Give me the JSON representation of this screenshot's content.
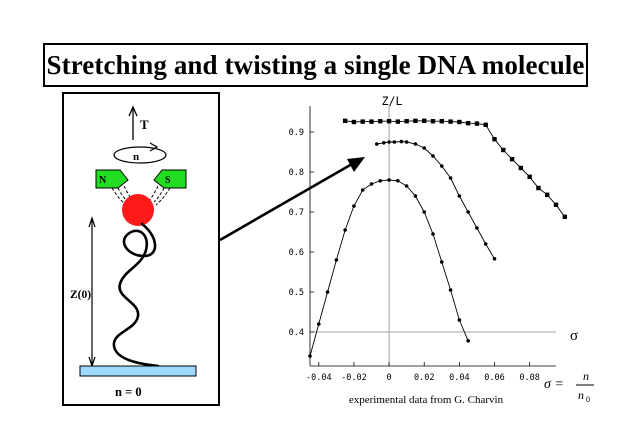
{
  "title": "Stretching and twisting a single DNA molecule",
  "diagram": {
    "tension_label": "T",
    "rotation_label": "n",
    "magnet_left": "N",
    "magnet_right": "S",
    "extension_label": "Z(0)",
    "turns_label": "n = 0",
    "colors": {
      "bead": "#ff1a1a",
      "magnets": "#22dd22",
      "surface": "#9fd8ff"
    }
  },
  "chart_data": {
    "type": "line",
    "title": "Z/L",
    "xlabel": "σ",
    "formula": {
      "lhs": "σ =",
      "numerator": "n",
      "denominator": "n",
      "denominator_sub": "0"
    },
    "caption": "experimental data from G. Charvin",
    "xlim": [
      -0.045,
      0.095
    ],
    "ylim": [
      0.325,
      0.955
    ],
    "xticks": [
      -0.04,
      -0.02,
      0,
      0.02,
      0.04,
      0.06,
      0.08
    ],
    "xtick_labels": [
      "-0.04",
      "-0.02",
      "0",
      "0.02",
      "0.04",
      "0.06",
      "0.08"
    ],
    "yticks": [
      0.4,
      0.5,
      0.6,
      0.7,
      0.8,
      0.9
    ],
    "ytick_labels": [
      "0.4",
      "0.5",
      "0.6",
      "0.7",
      "0.8",
      "0.9"
    ],
    "series": [
      {
        "marker": "square",
        "points": [
          [
            -0.025,
            0.928
          ],
          [
            -0.02,
            0.925
          ],
          [
            -0.015,
            0.926
          ],
          [
            -0.01,
            0.926
          ],
          [
            -0.005,
            0.927
          ],
          [
            0,
            0.927
          ],
          [
            0.005,
            0.926
          ],
          [
            0.01,
            0.927
          ],
          [
            0.015,
            0.928
          ],
          [
            0.02,
            0.928
          ],
          [
            0.025,
            0.927
          ],
          [
            0.03,
            0.927
          ],
          [
            0.035,
            0.926
          ],
          [
            0.04,
            0.925
          ],
          [
            0.045,
            0.922
          ],
          [
            0.05,
            0.921
          ],
          [
            0.055,
            0.918
          ],
          [
            0.06,
            0.882
          ],
          [
            0.065,
            0.855
          ],
          [
            0.07,
            0.832
          ],
          [
            0.075,
            0.81
          ],
          [
            0.08,
            0.788
          ],
          [
            0.085,
            0.76
          ],
          [
            0.09,
            0.743
          ],
          [
            0.095,
            0.718
          ],
          [
            0.1,
            0.688
          ]
        ]
      },
      {
        "marker": "dot",
        "points": [
          [
            -0.007,
            0.87
          ],
          [
            -0.003,
            0.873
          ],
          [
            0,
            0.875
          ],
          [
            0.003,
            0.875
          ],
          [
            0.007,
            0.876
          ],
          [
            0.01,
            0.875
          ],
          [
            0.015,
            0.87
          ],
          [
            0.02,
            0.86
          ],
          [
            0.025,
            0.84
          ],
          [
            0.03,
            0.815
          ],
          [
            0.035,
            0.785
          ],
          [
            0.04,
            0.74
          ],
          [
            0.045,
            0.7
          ],
          [
            0.05,
            0.66
          ],
          [
            0.055,
            0.62
          ],
          [
            0.06,
            0.583
          ]
        ]
      },
      {
        "marker": "dot",
        "points": [
          [
            -0.045,
            0.34
          ],
          [
            -0.04,
            0.42
          ],
          [
            -0.035,
            0.5
          ],
          [
            -0.03,
            0.58
          ],
          [
            -0.025,
            0.655
          ],
          [
            -0.02,
            0.715
          ],
          [
            -0.015,
            0.755
          ],
          [
            -0.01,
            0.77
          ],
          [
            -0.005,
            0.778
          ],
          [
            0,
            0.78
          ],
          [
            0.005,
            0.778
          ],
          [
            0.01,
            0.765
          ],
          [
            0.015,
            0.74
          ],
          [
            0.02,
            0.7
          ],
          [
            0.025,
            0.645
          ],
          [
            0.03,
            0.575
          ],
          [
            0.035,
            0.505
          ],
          [
            0.04,
            0.43
          ],
          [
            0.045,
            0.378
          ]
        ]
      }
    ]
  }
}
